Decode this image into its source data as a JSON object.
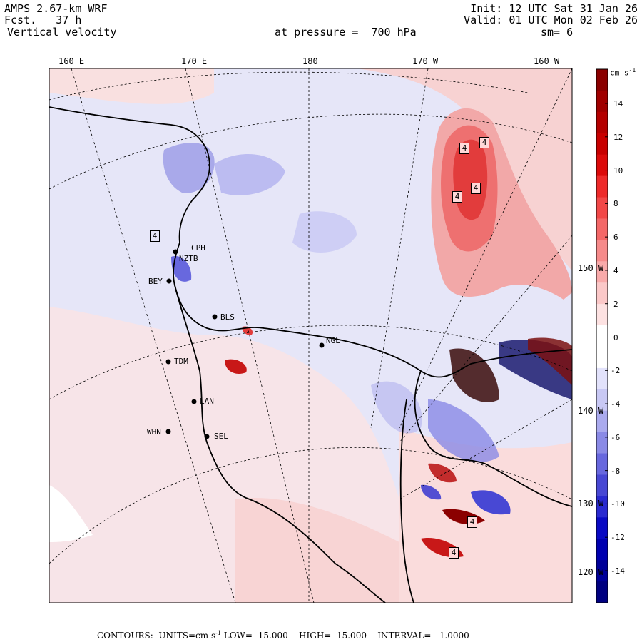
{
  "header": {
    "model": "AMPS 2.67-km WRF",
    "forecast": "Fcst.   37 h",
    "variable": "Vertical velocity",
    "init": "Init: 12 UTC Sat 31 Jan 26",
    "valid": "Valid: 01 UTC Mon 02 Feb 26",
    "pressure": "at pressure =  700 hPa",
    "smoothing": "sm= 6"
  },
  "longitude_labels": [
    "160 E",
    "170 E",
    "180",
    "170 W",
    "160 W"
  ],
  "latitude_labels": [
    "150 W",
    "140 W",
    "130 W",
    "120 W"
  ],
  "stations": [
    "CPH",
    "NZTB",
    "BEY",
    "BLS",
    "NGL",
    "TDM",
    "LAN",
    "WHN",
    "SEL"
  ],
  "contour_label": "4",
  "colorbar": {
    "units_label": "cm s",
    "units_exp": "-1",
    "ticks": [
      "14",
      "12",
      "10",
      "8",
      "6",
      "4",
      "2",
      "0",
      "-2",
      "-4",
      "-6",
      "-8",
      "-10",
      "-12",
      "-14"
    ],
    "colors": [
      "#8b0000",
      "#a00000",
      "#b40000",
      "#c80000",
      "#dc0a0a",
      "#ee2a2a",
      "#f24848",
      "#f46868",
      "#f68a8a",
      "#f9aaaa",
      "#fbc8c8",
      "#fde2e2",
      "#ffffff",
      "#ffffff",
      "#e2e2fb",
      "#c8c8f4",
      "#aaaaee",
      "#8a8ae6",
      "#6868de",
      "#4848d4",
      "#2a2ad0",
      "#0a0ac4",
      "#0000b0",
      "#000098",
      "#000080"
    ]
  },
  "footer": {
    "contours": "CONTOURS:  UNITS=cm s",
    "units_exp": "-1",
    "stats": " LOW= -15.000    HIGH=  15.000    INTERVAL=   1.0000"
  }
}
